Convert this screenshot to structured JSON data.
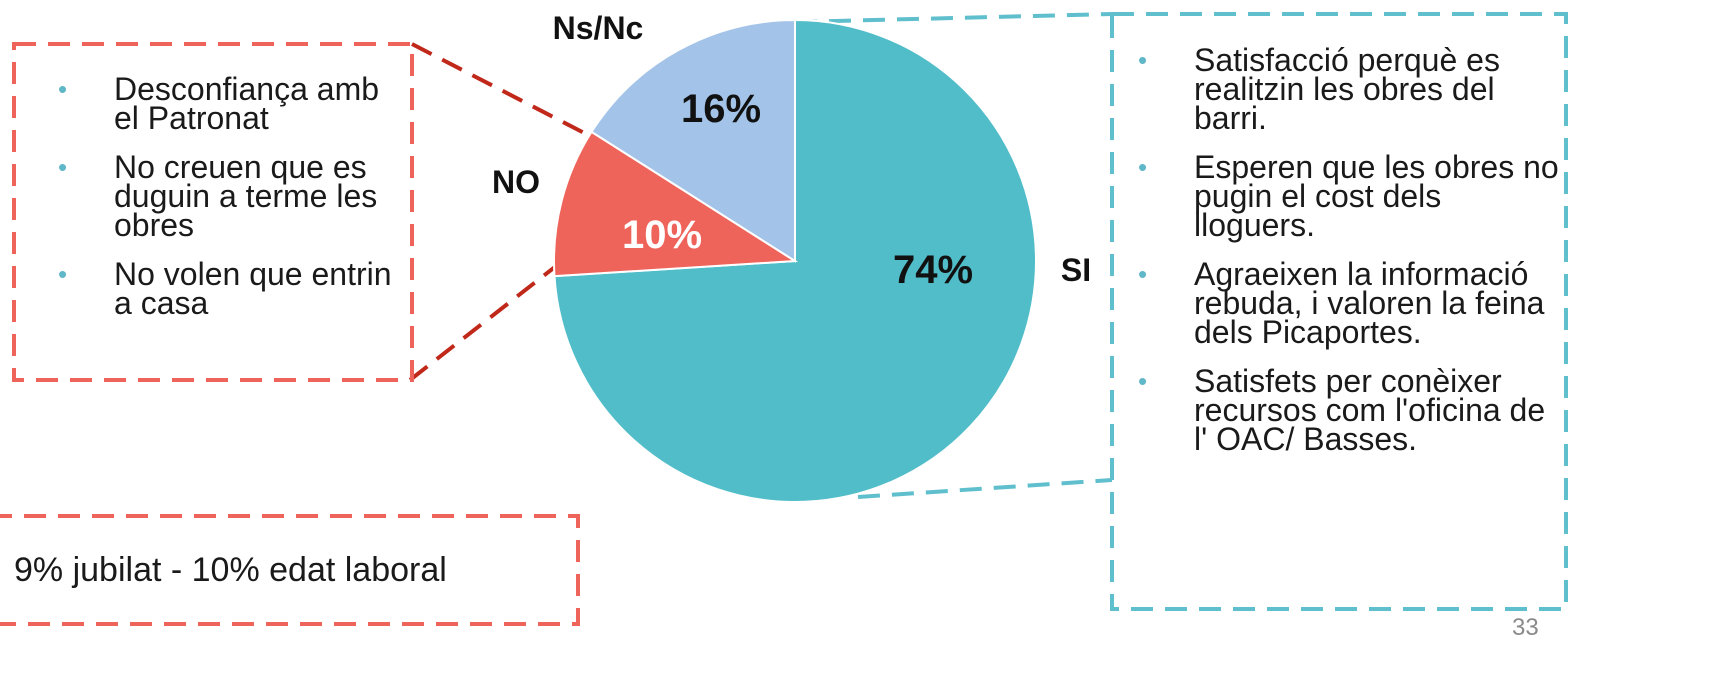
{
  "colors": {
    "si": "#50bdc9",
    "no": "#ef645a",
    "nsnc": "#a3c4e8",
    "red_dash": "#ef645a",
    "connector_red": "#c0281a",
    "teal_dash": "#5fbfcd",
    "bullet": "#5fb7c7"
  },
  "chart_data": {
    "type": "pie",
    "slices": [
      {
        "label": "SI",
        "value": 74,
        "pct_label": "74%"
      },
      {
        "label": "NO",
        "value": 10,
        "pct_label": "10%"
      },
      {
        "label": "Ns/Nc",
        "value": 16,
        "pct_label": "16%"
      }
    ],
    "title": "",
    "legend": "none"
  },
  "left_box": {
    "items": [
      "Desconfiança amb el Patronat",
      "No creuen que es duguin a terme les obres",
      "No volen que entrin a casa"
    ]
  },
  "right_box": {
    "items": [
      "Satisfacció perquè es realitzin les obres del barri.",
      "Esperen que les obres no pugin el cost dels lloguers.",
      "Agraeixen la informació rebuda, i valoren la feina dels Picaportes.",
      "Satisfets per conèixer recursos com l'oficina de l' OAC/ Basses."
    ]
  },
  "bottom_box": {
    "note": "9% jubilat - 10% edat laboral"
  },
  "page_number": "33"
}
